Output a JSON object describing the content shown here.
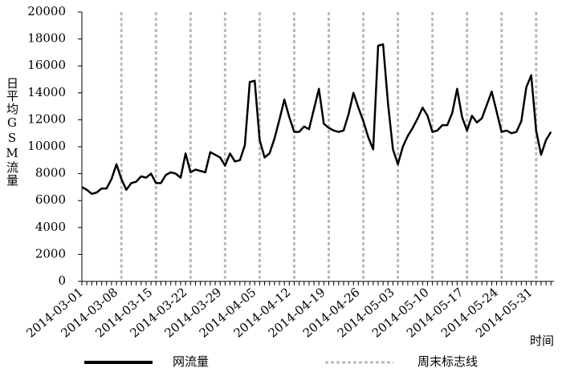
{
  "chart_data": {
    "type": "line",
    "y_label": "日平均GSM流量",
    "x_label": "时间",
    "categories": [
      "2014-03-01",
      null,
      null,
      null,
      null,
      null,
      null,
      "2014-03-08",
      null,
      null,
      null,
      null,
      null,
      null,
      "2014-03-15",
      null,
      null,
      null,
      null,
      null,
      null,
      "2014-03-22",
      null,
      null,
      null,
      null,
      null,
      null,
      "2014-03-29",
      null,
      null,
      null,
      null,
      null,
      null,
      "2014-04-05",
      null,
      null,
      null,
      null,
      null,
      null,
      "2014-04-12",
      null,
      null,
      null,
      null,
      null,
      null,
      "2014-04-19",
      null,
      null,
      null,
      null,
      null,
      null,
      "2014-04-26",
      null,
      null,
      null,
      null,
      null,
      null,
      "2014-05-03",
      null,
      null,
      null,
      null,
      null,
      null,
      "2014-05-10",
      null,
      null,
      null,
      null,
      null,
      null,
      "2014-05-17",
      null,
      null,
      null,
      null,
      null,
      null,
      "2014-05-24",
      null,
      null,
      null,
      null,
      null,
      null,
      "2014-05-31",
      null,
      null,
      null,
      null
    ],
    "series": [
      {
        "name": "网流量",
        "color": "#000000",
        "style": "solid",
        "values": [
          7000,
          6800,
          6500,
          6600,
          6900,
          6900,
          7600,
          8700,
          7600,
          6800,
          7300,
          7400,
          7800,
          7700,
          8000,
          7300,
          7300,
          7900,
          8100,
          8000,
          7700,
          9500,
          8100,
          8300,
          8200,
          8100,
          9600,
          9400,
          9200,
          8600,
          9500,
          8900,
          9000,
          10100,
          14800,
          14900,
          10500,
          9200,
          9500,
          10600,
          12000,
          13500,
          12200,
          11100,
          11100,
          11500,
          11300,
          12800,
          14300,
          11700,
          11400,
          11200,
          11100,
          11200,
          12400,
          14000,
          12900,
          11900,
          10700,
          9800,
          17500,
          17600,
          13200,
          9800,
          8700,
          10000,
          10800,
          11400,
          12100,
          12900,
          12300,
          11100,
          11200,
          11600,
          11600,
          12500,
          14300,
          12200,
          11200,
          12300,
          11800,
          12100,
          13100,
          14100,
          12600,
          11100,
          11200,
          11000,
          11100,
          11900,
          14400,
          15300,
          11200,
          9400,
          10500,
          11100
        ]
      },
      {
        "name": "周末标志线",
        "color": "#bbbbbb",
        "style": "dotted",
        "x": [
          8,
          15,
          22,
          29,
          36,
          43,
          50,
          57,
          64,
          71,
          78,
          85,
          92
        ]
      }
    ],
    "ylim": [
      0,
      20000
    ],
    "yticks": [
      0,
      2000,
      4000,
      6000,
      8000,
      10000,
      12000,
      14000,
      16000,
      18000,
      20000
    ],
    "legend": "bottom"
  }
}
